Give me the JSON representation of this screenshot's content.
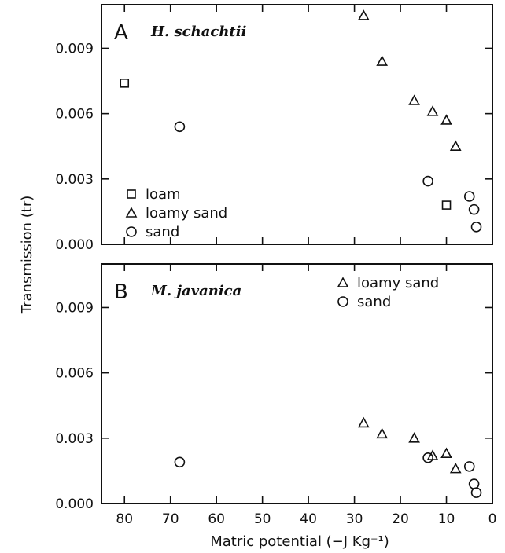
{
  "figure": {
    "y_axis_label": "Transmission (tr)",
    "x_axis_label": "Matric potential (−J Kg⁻¹)"
  },
  "chart_data": [
    {
      "type": "scatter",
      "panel": "A",
      "title": "H. schachtii",
      "xlabel": "Matric potential (−J Kg⁻¹)",
      "ylabel": "Transmission (tr)",
      "x_reversed": true,
      "xlim": [
        0,
        85
      ],
      "ylim": [
        0,
        0.011
      ],
      "x_ticks": [
        80,
        70,
        60,
        50,
        40,
        30,
        20,
        10,
        0
      ],
      "y_ticks": [
        "0.000",
        "0.003",
        "0.006",
        "0.009"
      ],
      "legend_position": "bottom-left",
      "series": [
        {
          "name": "loam",
          "marker": "square",
          "points": [
            [
              80,
              0.0074
            ],
            [
              10,
              0.0018
            ]
          ]
        },
        {
          "name": "loamy sand",
          "marker": "triangle",
          "points": [
            [
              28,
              0.0105
            ],
            [
              24,
              0.0084
            ],
            [
              17,
              0.0066
            ],
            [
              13,
              0.0061
            ],
            [
              10,
              0.0057
            ],
            [
              8,
              0.0045
            ]
          ]
        },
        {
          "name": "sand",
          "marker": "circle",
          "points": [
            [
              68,
              0.0054
            ],
            [
              14,
              0.0029
            ],
            [
              5,
              0.0022
            ],
            [
              4,
              0.0016
            ],
            [
              3.5,
              0.0008
            ]
          ]
        }
      ]
    },
    {
      "type": "scatter",
      "panel": "B",
      "title": "M. javanica",
      "xlabel": "Matric potential (−J Kg⁻¹)",
      "ylabel": "Transmission (tr)",
      "x_reversed": true,
      "xlim": [
        0,
        85
      ],
      "ylim": [
        0,
        0.011
      ],
      "x_ticks": [
        80,
        70,
        60,
        50,
        40,
        30,
        20,
        10,
        0
      ],
      "y_ticks": [
        "0.000",
        "0.003",
        "0.006",
        "0.009"
      ],
      "legend_position": "top-right",
      "series": [
        {
          "name": "loamy sand",
          "marker": "triangle",
          "points": [
            [
              28,
              0.0037
            ],
            [
              24,
              0.0032
            ],
            [
              17,
              0.003
            ],
            [
              13,
              0.0022
            ],
            [
              10,
              0.0023
            ],
            [
              8,
              0.0016
            ]
          ]
        },
        {
          "name": "sand",
          "marker": "circle",
          "points": [
            [
              68,
              0.0019
            ],
            [
              14,
              0.0021
            ],
            [
              5,
              0.0017
            ],
            [
              4,
              0.0009
            ],
            [
              3.5,
              0.0005
            ]
          ]
        }
      ]
    }
  ]
}
